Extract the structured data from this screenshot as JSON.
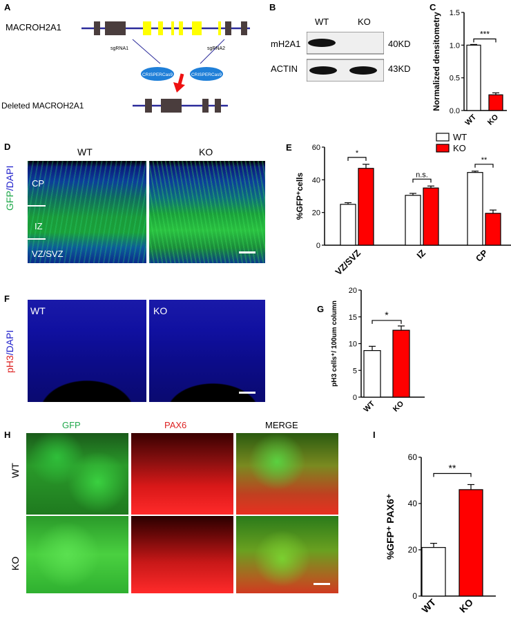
{
  "panels": {
    "a": {
      "letter": "A",
      "gene_label": "MACROH2A1",
      "deleted_label": "Deleted MACROH2A1",
      "sgrna1": "sgRNA1",
      "sgrna2": "sgRNA2",
      "cas9_1": "CRISPERCas9",
      "cas9_2": "CRISPERCas9"
    },
    "b": {
      "letter": "B",
      "col_wt": "WT",
      "col_ko": "KO",
      "row1_label": "mH2A1",
      "row1_size": "40KD",
      "row2_label": "ACTIN",
      "row2_size": "43KD"
    },
    "d": {
      "letter": "D",
      "wt": "WT",
      "ko": "KO",
      "stain": "GFP/DAPI",
      "cp": "CP",
      "iz": "IZ",
      "vz": "VZ/SVZ"
    },
    "f": {
      "letter": "F",
      "wt": "WT",
      "ko": "KO",
      "stain": "pH3/DAPI"
    },
    "h": {
      "letter": "H",
      "col1": "GFP",
      "col2": "PAX6",
      "col3": "MERGE",
      "row1": "WT",
      "row2": "KO"
    }
  },
  "colors": {
    "wt_bar": "#ffffff",
    "ko_bar": "#ff0000",
    "exon_dark": "#4a3d3d",
    "exon_yellow": "#ffff00",
    "intron": "#2a2a9a",
    "cas9": "#1f7fd8",
    "arrow": "#ee1111"
  },
  "chart_data": [
    {
      "id": "C",
      "type": "bar",
      "letter": "C",
      "categories": [
        "WT",
        "KO"
      ],
      "values": [
        1.0,
        0.24
      ],
      "errors": [
        0.01,
        0.03
      ],
      "ylabel": "Normalized densitometry",
      "ylim": [
        0,
        1.5
      ],
      "yticks": [
        "0.0",
        "0.5",
        "1.0",
        "1.5"
      ],
      "significance": "***"
    },
    {
      "id": "E",
      "type": "bar",
      "letter": "E",
      "categories": [
        "VZ/SVZ",
        "IZ",
        "CP"
      ],
      "series": [
        {
          "name": "WT",
          "values": [
            25,
            30.5,
            44.5
          ],
          "errors": [
            1,
            1.2,
            0.8
          ]
        },
        {
          "name": "KO",
          "values": [
            47,
            35,
            19.5
          ],
          "errors": [
            2.5,
            1.2,
            2
          ]
        }
      ],
      "ylabel": "%GFP⁺cells",
      "ylim": [
        0,
        60
      ],
      "yticks": [
        "0",
        "20",
        "40",
        "60"
      ],
      "significance": [
        "*",
        "n.s.",
        "**"
      ],
      "legend": "top-right"
    },
    {
      "id": "G",
      "type": "bar",
      "letter": "G",
      "categories": [
        "WT",
        "KO"
      ],
      "values": [
        8.7,
        12.5
      ],
      "errors": [
        0.8,
        0.8
      ],
      "ylabel": "pH3 cells⁺/ 100um column",
      "ylim": [
        0,
        20
      ],
      "yticks": [
        "0",
        "5",
        "10",
        "15",
        "20"
      ],
      "significance": "*"
    },
    {
      "id": "I",
      "type": "bar",
      "letter": "I",
      "categories": [
        "WT",
        "KO"
      ],
      "values": [
        21,
        46
      ],
      "errors": [
        1.8,
        2.2
      ],
      "ylabel": "%GFP⁺ PAX6⁺",
      "ylim": [
        0,
        60
      ],
      "yticks": [
        "0",
        "20",
        "40",
        "60"
      ],
      "significance": "**"
    }
  ]
}
